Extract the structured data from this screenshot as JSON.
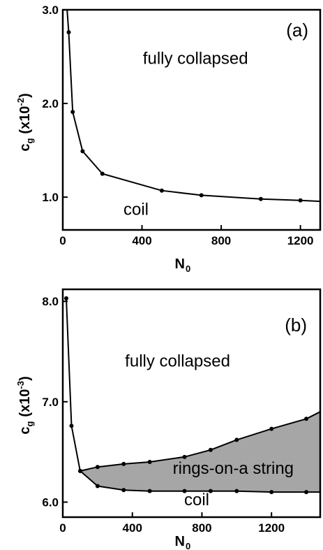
{
  "chart_data": [
    {
      "type": "line",
      "panel_label": "(a)",
      "xlabel": "N",
      "xlabel_sub": "0",
      "ylabel": "c",
      "ylabel_sub": "g",
      "ylabel_unit": "(x10",
      "ylabel_unit_sup": "-2",
      "ylabel_unit_close": ")",
      "xlim": [
        0,
        1300
      ],
      "ylim": [
        0.65,
        3.0
      ],
      "xticks": [
        0,
        400,
        800,
        1200
      ],
      "xtick_labels": [
        "0",
        "400",
        "800",
        "1200"
      ],
      "yticks": [
        1.0,
        2.0,
        3.0
      ],
      "ytick_labels": [
        "1.0",
        "2.0",
        "3.0"
      ],
      "series": [
        {
          "x": [
            30,
            50,
            100,
            200,
            500,
            700,
            1000,
            1200
          ],
          "y": [
            2.76,
            1.91,
            1.49,
            1.25,
            1.07,
            1.02,
            0.98,
            0.965
          ],
          "curve_start": [
            20,
            3.05
          ],
          "curve_end": [
            1300,
            0.955
          ]
        }
      ],
      "annotations": [
        {
          "text": "fully collapsed",
          "x": 670,
          "y": 2.42
        },
        {
          "text": "coil",
          "x": 370,
          "y": 0.81
        }
      ],
      "grid": false
    },
    {
      "type": "area",
      "panel_label": "(b)",
      "xlabel": "N",
      "xlabel_sub": "0",
      "ylabel": "c",
      "ylabel_sub": "g",
      "ylabel_unit": "(x10",
      "ylabel_unit_sup": "-3",
      "ylabel_unit_close": ")",
      "xlim": [
        0,
        1480
      ],
      "ylim": [
        5.85,
        8.12
      ],
      "xticks": [
        0,
        400,
        800,
        1200
      ],
      "xtick_labels": [
        "0",
        "400",
        "800",
        "1200"
      ],
      "yticks": [
        6.0,
        7.0,
        8.0
      ],
      "ytick_labels": [
        "6.0",
        "7.0",
        "8.0"
      ],
      "series": [
        {
          "role": "upper",
          "x": [
            20,
            50,
            100,
            200,
            350,
            500,
            700,
            850,
            1000,
            1200,
            1400
          ],
          "y": [
            8.03,
            6.76,
            6.31,
            6.35,
            6.38,
            6.4,
            6.45,
            6.52,
            6.62,
            6.73,
            6.83
          ],
          "curve_end": [
            1480,
            6.9
          ]
        },
        {
          "role": "lower",
          "x": [
            100,
            200,
            350,
            500,
            700,
            850,
            1000,
            1200,
            1400
          ],
          "y": [
            6.31,
            6.16,
            6.12,
            6.11,
            6.11,
            6.11,
            6.11,
            6.1,
            6.1
          ],
          "curve_end": [
            1480,
            6.1
          ]
        }
      ],
      "annotations": [
        {
          "text": "fully collapsed",
          "x": 660,
          "y": 7.35
        },
        {
          "text": "rings-on-a string",
          "x": 980,
          "y": 6.28
        },
        {
          "text": "coil",
          "x": 770,
          "y": 5.97
        }
      ],
      "grid": false
    }
  ]
}
